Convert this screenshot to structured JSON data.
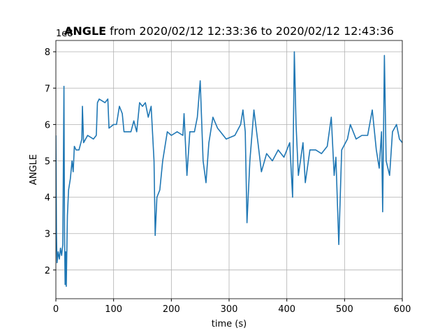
{
  "chart_data": {
    "type": "line",
    "title": {
      "variable": "ANGLE",
      "range": "from 2020/02/12 12:33:36 to 2020/02/12 12:43:36"
    },
    "x_label": "time (s)",
    "y_label": "ANGLE",
    "y_offset_text": "1e8",
    "xlim": [
      0,
      600
    ],
    "xticks": [
      0,
      100,
      200,
      300,
      400,
      500,
      600
    ],
    "ylim": [
      1.21,
      8.31
    ],
    "yticks": [
      2,
      3,
      4,
      5,
      6,
      7,
      8
    ],
    "grid": true,
    "series": [
      {
        "name": "ANGLE",
        "color": "#1f77b4",
        "x": [
          0,
          1,
          2,
          4,
          6,
          8,
          10,
          12,
          14,
          15,
          16,
          17,
          18,
          20,
          22,
          25,
          28,
          30,
          32,
          35,
          40,
          45,
          46,
          48,
          55,
          65,
          70,
          72,
          75,
          85,
          90,
          92,
          100,
          105,
          110,
          115,
          118,
          125,
          130,
          135,
          140,
          145,
          150,
          155,
          160,
          165,
          170,
          172,
          175,
          180,
          185,
          193,
          200,
          210,
          220,
          222,
          227,
          232,
          240,
          245,
          250,
          255,
          260,
          265,
          272,
          280,
          285,
          295,
          310,
          320,
          324,
          328,
          331,
          336,
          343,
          350,
          356,
          365,
          375,
          385,
          395,
          405,
          410,
          413,
          416,
          420,
          428,
          432,
          440,
          450,
          460,
          470,
          477,
          482,
          485,
          490,
          495,
          505,
          510,
          520,
          530,
          540,
          548,
          555,
          560,
          564,
          566,
          569,
          572,
          578,
          583,
          590,
          595,
          600
        ],
        "values": [
          5.7,
          3.0,
          2.2,
          2.5,
          2.3,
          2.6,
          2.4,
          2.7,
          7.05,
          3.0,
          1.6,
          2.5,
          1.55,
          3.5,
          4.2,
          4.5,
          5.0,
          4.7,
          5.4,
          5.3,
          5.3,
          5.6,
          6.5,
          5.5,
          5.7,
          5.6,
          5.7,
          6.6,
          6.7,
          6.6,
          6.7,
          5.9,
          6.0,
          6.0,
          6.5,
          6.3,
          5.8,
          5.8,
          5.8,
          6.1,
          5.8,
          6.6,
          6.5,
          6.6,
          6.2,
          6.5,
          5.0,
          2.95,
          4.0,
          4.2,
          5.0,
          5.8,
          5.7,
          5.8,
          5.7,
          6.3,
          4.6,
          5.8,
          5.8,
          6.2,
          7.2,
          5.0,
          4.4,
          5.5,
          6.2,
          5.9,
          5.8,
          5.6,
          5.7,
          6.0,
          6.4,
          5.8,
          3.3,
          5.0,
          6.4,
          5.5,
          4.7,
          5.2,
          5.0,
          5.3,
          5.1,
          5.5,
          4.0,
          8.0,
          6.0,
          4.6,
          5.5,
          4.4,
          5.3,
          5.3,
          5.2,
          5.4,
          6.2,
          4.6,
          5.1,
          2.7,
          5.3,
          5.6,
          6.0,
          5.6,
          5.7,
          5.7,
          6.4,
          5.3,
          4.8,
          5.8,
          3.6,
          7.9,
          5.0,
          4.6,
          5.8,
          6.0,
          5.6,
          5.5
        ]
      }
    ]
  }
}
